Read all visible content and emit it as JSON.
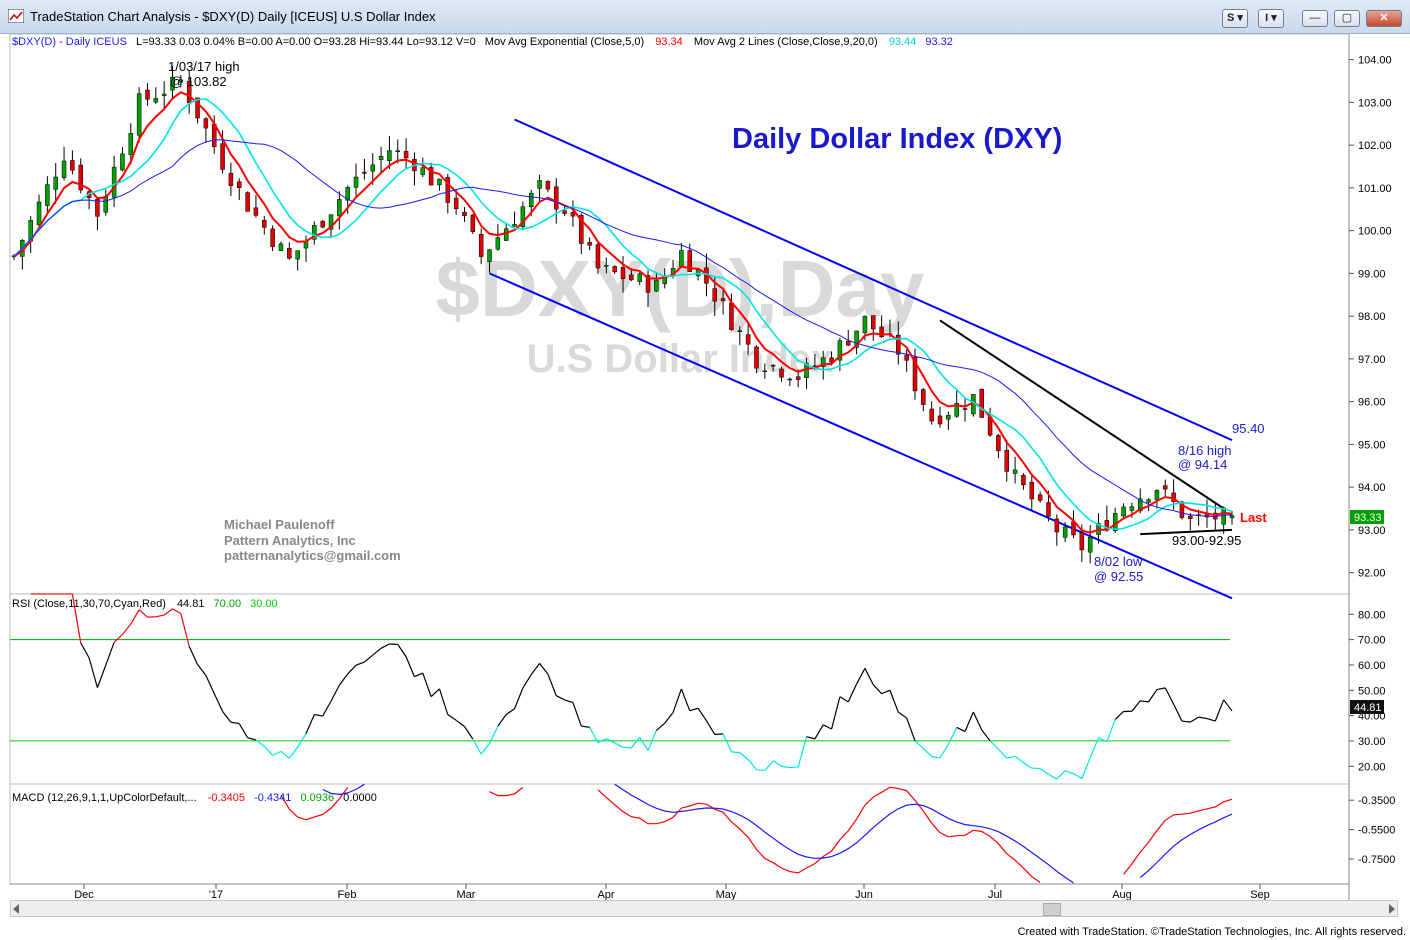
{
  "window": {
    "title": "TradeStation Chart Analysis - $DXY(D) Daily [ICEUS] U.S Dollar Index",
    "btn_s": "S",
    "btn_i": "I",
    "min_label": "—",
    "max_label": "▢",
    "close_label": "✕"
  },
  "chart_header": {
    "symbol": "$DXY(D) - Daily  ICEUS",
    "quote": "L=93.33  0.03   0.04%   B=0.00   A=0.00   O=93.28   Hi=93.44   Lo=93.12   V=0",
    "ema_label": "Mov Avg Exponential (Close,5,0)",
    "ema_value": "93.34",
    "ma2_label": "Mov Avg 2 Lines (Close,Close,9,20,0)",
    "ma2_value1": "93.44",
    "ma2_value2": "93.32"
  },
  "watermark": {
    "symbol": "$DXY(D),Day",
    "name": "U.S Dollar Index"
  },
  "annotations": {
    "title": "Daily Dollar Index (DXY)",
    "jan_high_line1": "1/03/17 high",
    "jan_high_line2": "@ 103.82",
    "aug16_line1": "8/16 high",
    "aug16_line2": "@ 94.14",
    "aug02_line1": "8/02 low",
    "aug02_line2": "@ 92.55",
    "channel_level": "95.40",
    "support_level": "93.00-92.95",
    "last_label": "Last",
    "author": "Michael Paulenoff",
    "company": "Pattern Analytics, Inc",
    "email": "patternanalytics@gmail.com"
  },
  "chart_data": [
    {
      "type": "candlestick",
      "title": "Daily Dollar Index (DXY)",
      "ylim": [
        91.5,
        104.6
      ],
      "yticks": [
        "104.00",
        "103.00",
        "102.00",
        "101.00",
        "100.00",
        "99.00",
        "98.00",
        "97.00",
        "96.00",
        "95.00",
        "94.00",
        "93.00",
        "92.00"
      ],
      "last_value": "93.33",
      "x_labels": [
        "Dec",
        "'17",
        "Feb",
        "Mar",
        "Apr",
        "May",
        "Jun",
        "Jul",
        "Aug",
        "Sep"
      ],
      "path_points": [
        [
          0,
          99.4
        ],
        [
          6,
          101.8
        ],
        [
          10,
          100.4
        ],
        [
          15,
          103.0
        ],
        [
          20,
          103.5
        ],
        [
          25,
          101.6
        ],
        [
          28,
          100.6
        ],
        [
          33,
          99.3
        ],
        [
          40,
          101.0
        ],
        [
          45,
          101.9
        ],
        [
          48,
          101.6
        ],
        [
          53,
          100.6
        ],
        [
          56,
          99.4
        ],
        [
          63,
          101.0
        ],
        [
          66,
          100.5
        ],
        [
          70,
          99.1
        ],
        [
          77,
          98.7
        ],
        [
          80,
          99.5
        ],
        [
          83,
          98.8
        ],
        [
          89,
          97.0
        ],
        [
          94,
          96.6
        ],
        [
          98,
          97.1
        ],
        [
          102,
          97.9
        ],
        [
          106,
          97.2
        ],
        [
          110,
          95.6
        ],
        [
          115,
          96.1
        ],
        [
          120,
          94.2
        ],
        [
          125,
          93.0
        ],
        [
          128,
          92.6
        ],
        [
          133,
          93.6
        ],
        [
          137,
          94.0
        ],
        [
          141,
          93.2
        ],
        [
          144,
          93.3
        ]
      ],
      "series": [
        {
          "name": "Mov Avg Exponential (Close,5,0)",
          "color": "#ff0000"
        },
        {
          "name": "Mov Avg 2 Lines 9",
          "color": "#00e5e5"
        },
        {
          "name": "Mov Avg 2 Lines 20",
          "color": "#1a1aff"
        }
      ],
      "trendlines": [
        {
          "name": "upper-channel",
          "start": [
            60,
            102.6
          ],
          "end": [
            146,
            95.1
          ],
          "color": "#0000ff"
        },
        {
          "name": "lower-channel",
          "start": [
            57,
            99.0
          ],
          "end": [
            146,
            91.4
          ],
          "color": "#0000ff"
        },
        {
          "name": "descending-resistance",
          "start": [
            111,
            97.9
          ],
          "end": [
            145,
            93.5
          ],
          "color": "#000000"
        },
        {
          "name": "support",
          "start": [
            135,
            92.9
          ],
          "end": [
            146,
            93.0
          ],
          "color": "#000000"
        }
      ]
    },
    {
      "type": "line",
      "title": "RSI (Close,11,30,70,Cyan,Red)",
      "value": "44.81",
      "overbought": "70.00",
      "oversold": "30.00",
      "ylim": [
        13,
        88
      ],
      "yticks": [
        "80.00",
        "70.00",
        "60.00",
        "50.00",
        "40.00",
        "30.00",
        "20.00"
      ],
      "last_value": "44.81"
    },
    {
      "type": "line",
      "title": "MACD (12,26,9,1,1,UpColorDefault,...",
      "macd_value": "-0.3405",
      "signal_value": "-0.4341",
      "hist_value": "0.0936",
      "zero_value": "0.0000",
      "ylim": [
        -0.92,
        -0.24
      ],
      "yticks": [
        "-0.3500",
        "-0.5500",
        "-0.7500"
      ]
    }
  ]
}
